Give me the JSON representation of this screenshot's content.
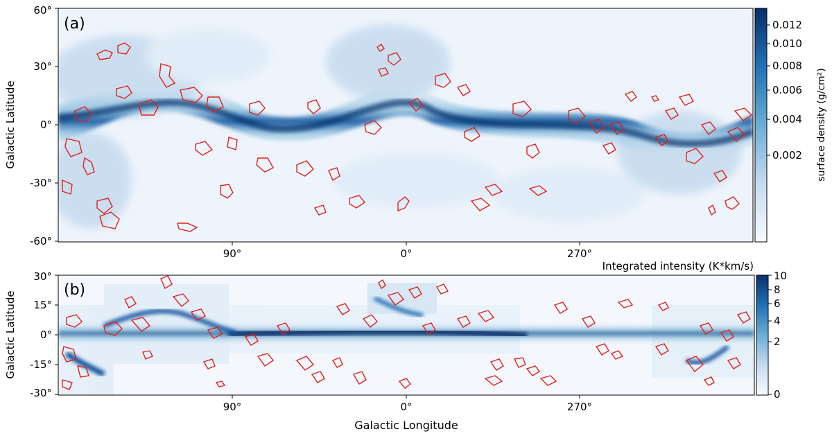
{
  "chart_data": [
    {
      "type": "heatmap",
      "panel_label": "(a)",
      "ylabel": "Galactic Latitude",
      "x_ticks": [
        "90°",
        "0°",
        "270°"
      ],
      "y_ticks": [
        "60°",
        "30°",
        "0°",
        "-30°",
        "-60°"
      ],
      "colorbar": {
        "label": "surface density (g/cm²)",
        "ticks": [
          "0.012",
          "0.010",
          "0.008",
          "0.006",
          "0.004",
          "0.002"
        ],
        "colormap": "Blues"
      },
      "contour_color": "#e0201a"
    },
    {
      "type": "heatmap",
      "panel_label": "(b)",
      "xlabel": "Galactic Longitude",
      "ylabel": "Galactic Latitude",
      "x_ticks": [
        "90°",
        "0°",
        "270°"
      ],
      "y_ticks": [
        "30°",
        "15°",
        "0°",
        "-15°",
        "-30°"
      ],
      "colorbar": {
        "label": "Integrated intensity (K*km/s)",
        "ticks": [
          "10",
          "8",
          "6",
          "4",
          "2",
          "0"
        ],
        "colormap": "Blues"
      },
      "contour_color": "#e0201a"
    }
  ]
}
